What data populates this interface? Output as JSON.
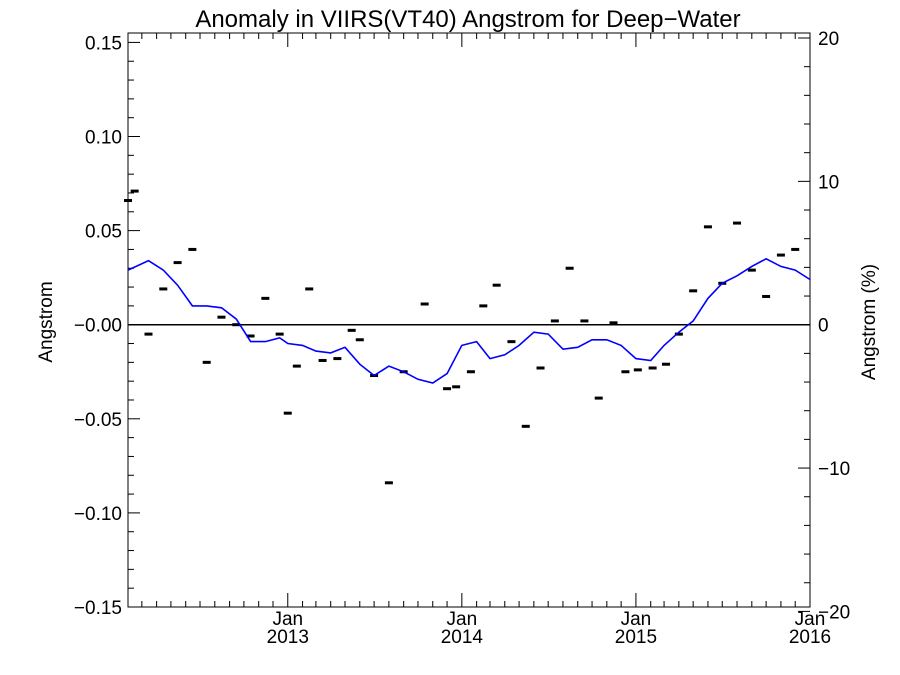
{
  "chart_data": {
    "type": "line",
    "title": "Anomaly in VIIRS(VT40) Angstrom for Deep−Water",
    "ylabel": "Angstrom",
    "ylabel_right": "Angstrom (%)",
    "x_range": [
      "2012-02-01",
      "2016-01-01"
    ],
    "ylim": [
      -0.15,
      0.155
    ],
    "ylim_right": [
      -20,
      20
    ],
    "grid": false,
    "y_ticks": [
      {
        "value": 0.15,
        "label": "0.15"
      },
      {
        "value": 0.1,
        "label": "0.10"
      },
      {
        "value": 0.05,
        "label": "0.05"
      },
      {
        "value": 0.0,
        "label": "−0.00"
      },
      {
        "value": -0.05,
        "label": "−0.05"
      },
      {
        "value": -0.1,
        "label": "−0.10"
      },
      {
        "value": -0.15,
        "label": "−0.15"
      }
    ],
    "y_right_ticks": [
      {
        "value": 20,
        "label": "20"
      },
      {
        "value": 10,
        "label": "10"
      },
      {
        "value": 0,
        "label": "0"
      },
      {
        "value": -10,
        "label": "−10"
      },
      {
        "value": -20,
        "label": "−20"
      }
    ],
    "x_ticks": [
      {
        "date": "2013-01-01",
        "label": "Jan",
        "sublabel": "2013"
      },
      {
        "date": "2014-01-01",
        "label": "Jan",
        "sublabel": "2014"
      },
      {
        "date": "2015-01-01",
        "label": "Jan",
        "sublabel": "2015"
      },
      {
        "date": "2016-01-01",
        "label": "Jan",
        "sublabel": "2016"
      }
    ],
    "series": [
      {
        "type": "points",
        "color": "#000000",
        "points": [
          [
            "2012-02-01",
            0.066
          ],
          [
            "2012-02-15",
            0.071
          ],
          [
            "2012-03-15",
            -0.005
          ],
          [
            "2012-04-15",
            0.019
          ],
          [
            "2012-05-15",
            0.033
          ],
          [
            "2012-06-15",
            0.04
          ],
          [
            "2012-07-15",
            -0.02
          ],
          [
            "2012-08-15",
            0.004
          ],
          [
            "2012-09-15",
            0.0
          ],
          [
            "2012-10-15",
            -0.006
          ],
          [
            "2012-11-15",
            0.014
          ],
          [
            "2012-12-15",
            -0.005
          ],
          [
            "2013-01-01",
            -0.047
          ],
          [
            "2013-01-20",
            -0.022
          ],
          [
            "2013-02-15",
            0.019
          ],
          [
            "2013-03-15",
            -0.019
          ],
          [
            "2013-04-15",
            -0.018
          ],
          [
            "2013-05-15",
            -0.003
          ],
          [
            "2013-06-01",
            -0.008
          ],
          [
            "2013-07-01",
            -0.027
          ],
          [
            "2013-08-01",
            -0.084
          ],
          [
            "2013-09-01",
            -0.025
          ],
          [
            "2013-10-15",
            0.011
          ],
          [
            "2013-12-01",
            -0.034
          ],
          [
            "2013-12-20",
            -0.033
          ],
          [
            "2014-01-20",
            -0.025
          ],
          [
            "2014-02-15",
            0.01
          ],
          [
            "2014-03-15",
            0.021
          ],
          [
            "2014-04-15",
            -0.009
          ],
          [
            "2014-05-15",
            -0.054
          ],
          [
            "2014-06-15",
            -0.023
          ],
          [
            "2014-07-15",
            0.002
          ],
          [
            "2014-08-15",
            0.03
          ],
          [
            "2014-09-15",
            0.002
          ],
          [
            "2014-10-15",
            -0.039
          ],
          [
            "2014-11-15",
            0.001
          ],
          [
            "2014-12-10",
            -0.025
          ],
          [
            "2015-01-05",
            -0.024
          ],
          [
            "2015-02-05",
            -0.023
          ],
          [
            "2015-03-05",
            -0.021
          ],
          [
            "2015-04-01",
            -0.005
          ],
          [
            "2015-05-01",
            0.018
          ],
          [
            "2015-06-01",
            0.052
          ],
          [
            "2015-07-01",
            0.022
          ],
          [
            "2015-08-01",
            0.054
          ],
          [
            "2015-09-01",
            0.029
          ],
          [
            "2015-10-01",
            0.015
          ],
          [
            "2015-11-01",
            0.037
          ],
          [
            "2015-12-01",
            0.04
          ]
        ]
      },
      {
        "type": "line",
        "color": "#0000ff",
        "points": [
          [
            "2012-02-01",
            0.029
          ],
          [
            "2012-03-15",
            0.034
          ],
          [
            "2012-04-15",
            0.029
          ],
          [
            "2012-05-15",
            0.021
          ],
          [
            "2012-06-15",
            0.01
          ],
          [
            "2012-07-15",
            0.01
          ],
          [
            "2012-08-15",
            0.009
          ],
          [
            "2012-09-15",
            0.003
          ],
          [
            "2012-10-15",
            -0.009
          ],
          [
            "2012-11-15",
            -0.009
          ],
          [
            "2012-12-15",
            -0.007
          ],
          [
            "2013-01-01",
            -0.01
          ],
          [
            "2013-02-01",
            -0.011
          ],
          [
            "2013-03-01",
            -0.014
          ],
          [
            "2013-04-01",
            -0.015
          ],
          [
            "2013-05-01",
            -0.012
          ],
          [
            "2013-06-01",
            -0.021
          ],
          [
            "2013-07-01",
            -0.027
          ],
          [
            "2013-08-01",
            -0.022
          ],
          [
            "2013-09-01",
            -0.025
          ],
          [
            "2013-10-01",
            -0.029
          ],
          [
            "2013-11-01",
            -0.031
          ],
          [
            "2013-12-01",
            -0.026
          ],
          [
            "2014-01-01",
            -0.011
          ],
          [
            "2014-02-01",
            -0.009
          ],
          [
            "2014-03-01",
            -0.018
          ],
          [
            "2014-04-01",
            -0.016
          ],
          [
            "2014-05-01",
            -0.011
          ],
          [
            "2014-06-01",
            -0.004
          ],
          [
            "2014-07-01",
            -0.005
          ],
          [
            "2014-08-01",
            -0.013
          ],
          [
            "2014-09-01",
            -0.012
          ],
          [
            "2014-10-01",
            -0.008
          ],
          [
            "2014-11-01",
            -0.008
          ],
          [
            "2014-12-01",
            -0.011
          ],
          [
            "2015-01-01",
            -0.018
          ],
          [
            "2015-02-01",
            -0.019
          ],
          [
            "2015-03-01",
            -0.011
          ],
          [
            "2015-04-01",
            -0.004
          ],
          [
            "2015-05-01",
            0.002
          ],
          [
            "2015-06-01",
            0.014
          ],
          [
            "2015-07-01",
            0.022
          ],
          [
            "2015-08-01",
            0.026
          ],
          [
            "2015-09-01",
            0.031
          ],
          [
            "2015-10-01",
            0.035
          ],
          [
            "2015-11-01",
            0.031
          ],
          [
            "2015-12-01",
            0.029
          ],
          [
            "2016-01-01",
            0.024
          ]
        ]
      }
    ],
    "reference_line": {
      "value": 0.0,
      "color": "#000000"
    }
  }
}
